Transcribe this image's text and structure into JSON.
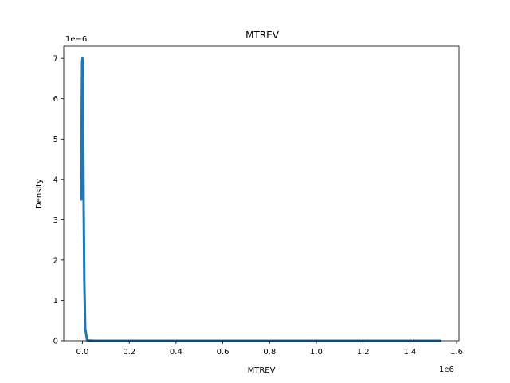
{
  "chart_data": {
    "type": "line",
    "title": "MTREV",
    "xlabel": "MTREV",
    "ylabel": "Density",
    "x_offset_label": "1e6",
    "y_offset_label": "1e−6",
    "xlim": [
      -80000,
      1610000
    ],
    "ylim": [
      0,
      7.3e-06
    ],
    "x_ticks": [
      0,
      200000,
      400000,
      600000,
      800000,
      1000000,
      1200000,
      1400000,
      1600000
    ],
    "x_tick_labels": [
      "0.0",
      "0.2",
      "0.4",
      "0.6",
      "0.8",
      "1.0",
      "1.2",
      "1.4",
      "1.6"
    ],
    "y_ticks": [
      0,
      1e-06,
      2e-06,
      3e-06,
      4e-06,
      5e-06,
      6e-06,
      7e-06
    ],
    "y_tick_labels": [
      "0",
      "1",
      "2",
      "3",
      "4",
      "5",
      "6",
      "7"
    ],
    "grid": false,
    "series": [
      {
        "color": "#1f77b4",
        "x": [
          -5000,
          -3000,
          -1500,
          0,
          1500,
          3000,
          5000,
          8000,
          12000,
          20000,
          50000,
          150000,
          400000,
          800000,
          1200000,
          1530000
        ],
        "y": [
          3.5e-06,
          5.8e-06,
          6.9e-06,
          7e-06,
          6.8e-06,
          5.5e-06,
          3.5e-06,
          1.5e-06,
          3e-07,
          1e-08,
          0.0,
          0.0,
          0.0,
          0.0,
          0.0,
          0.0
        ]
      }
    ]
  }
}
